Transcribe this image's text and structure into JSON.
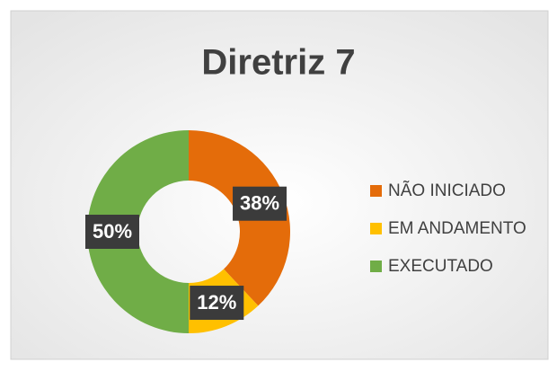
{
  "chart_data": {
    "type": "donut",
    "title": "Diretriz 7",
    "categories": [
      "NÃO INICIADO",
      "EM ANDAMENTO",
      "EXECUTADO"
    ],
    "values": [
      38,
      12,
      50
    ],
    "value_labels": [
      "38%",
      "12%",
      "50%"
    ],
    "colors": [
      "#E46C0A",
      "#FFC000",
      "#70AD47"
    ],
    "legend": "right"
  }
}
